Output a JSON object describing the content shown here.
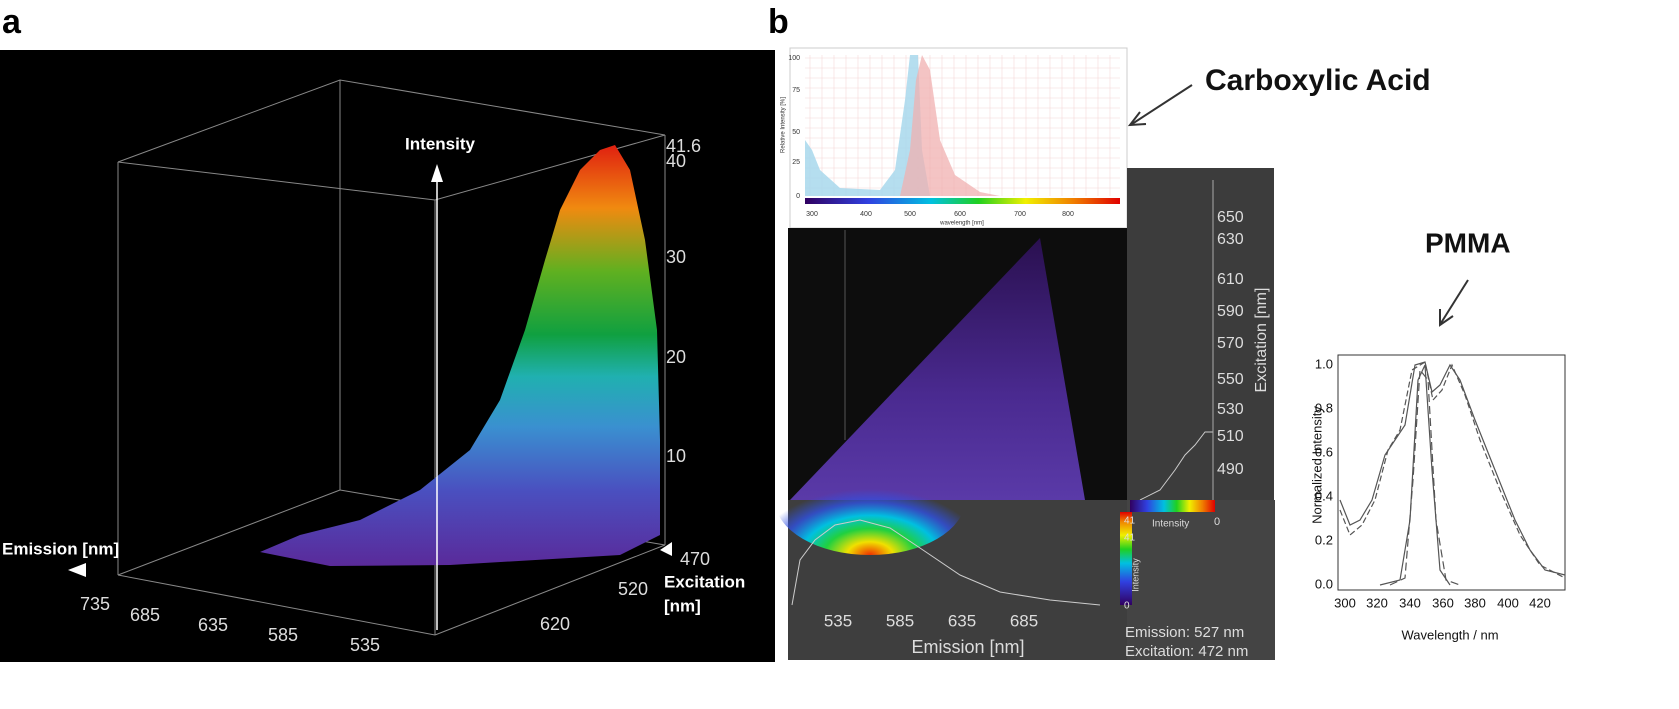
{
  "panel_a": {
    "label": "a",
    "intensity_label": "Intensity",
    "intensity_ticks": [
      "41.6",
      "40",
      "30",
      "20",
      "10"
    ],
    "emission_label": "Emission [nm]",
    "emission_ticks": [
      "735",
      "685",
      "635",
      "585",
      "535"
    ],
    "excitation_label": [
      "Excitation",
      "[nm]"
    ],
    "excitation_ticks": [
      "470",
      "520",
      "620"
    ]
  },
  "panel_b": {
    "label": "b",
    "spectrum": {
      "y_label": "Relative Intensity [%]",
      "y_ticks": [
        "100",
        "75",
        "50",
        "25",
        "0"
      ],
      "x_label": "wavelength [nm]",
      "x_ticks": [
        "300",
        "400",
        "500",
        "600",
        "700",
        "800"
      ]
    },
    "carboxylic_acid": "Carboxylic Acid",
    "excitation_label": "Excitation [nm]",
    "excitation_ticks": [
      "650",
      "630",
      "610",
      "590",
      "570",
      "550",
      "530",
      "510",
      "490"
    ],
    "emission_label": "Emission [nm]",
    "emission_ticks": [
      "535",
      "585",
      "635",
      "685"
    ],
    "colorbar_h": {
      "label": "Intensity",
      "max": "0"
    },
    "colorbar_v": {
      "top": "41",
      "second": "41",
      "label": "Intensity",
      "bottom": "0"
    },
    "readout": [
      "Emission: 527 nm",
      "Excitation: 472 nm"
    ],
    "pmma": {
      "title": "PMMA",
      "y_label": "Normalized Intensity",
      "y_ticks": [
        "1.0",
        "0.8",
        "0.6",
        "0.4",
        "0.2",
        "0.0"
      ],
      "x_label": "Wavelength / nm",
      "x_ticks": [
        "300",
        "320",
        "340",
        "360",
        "380",
        "400",
        "420"
      ]
    }
  }
}
